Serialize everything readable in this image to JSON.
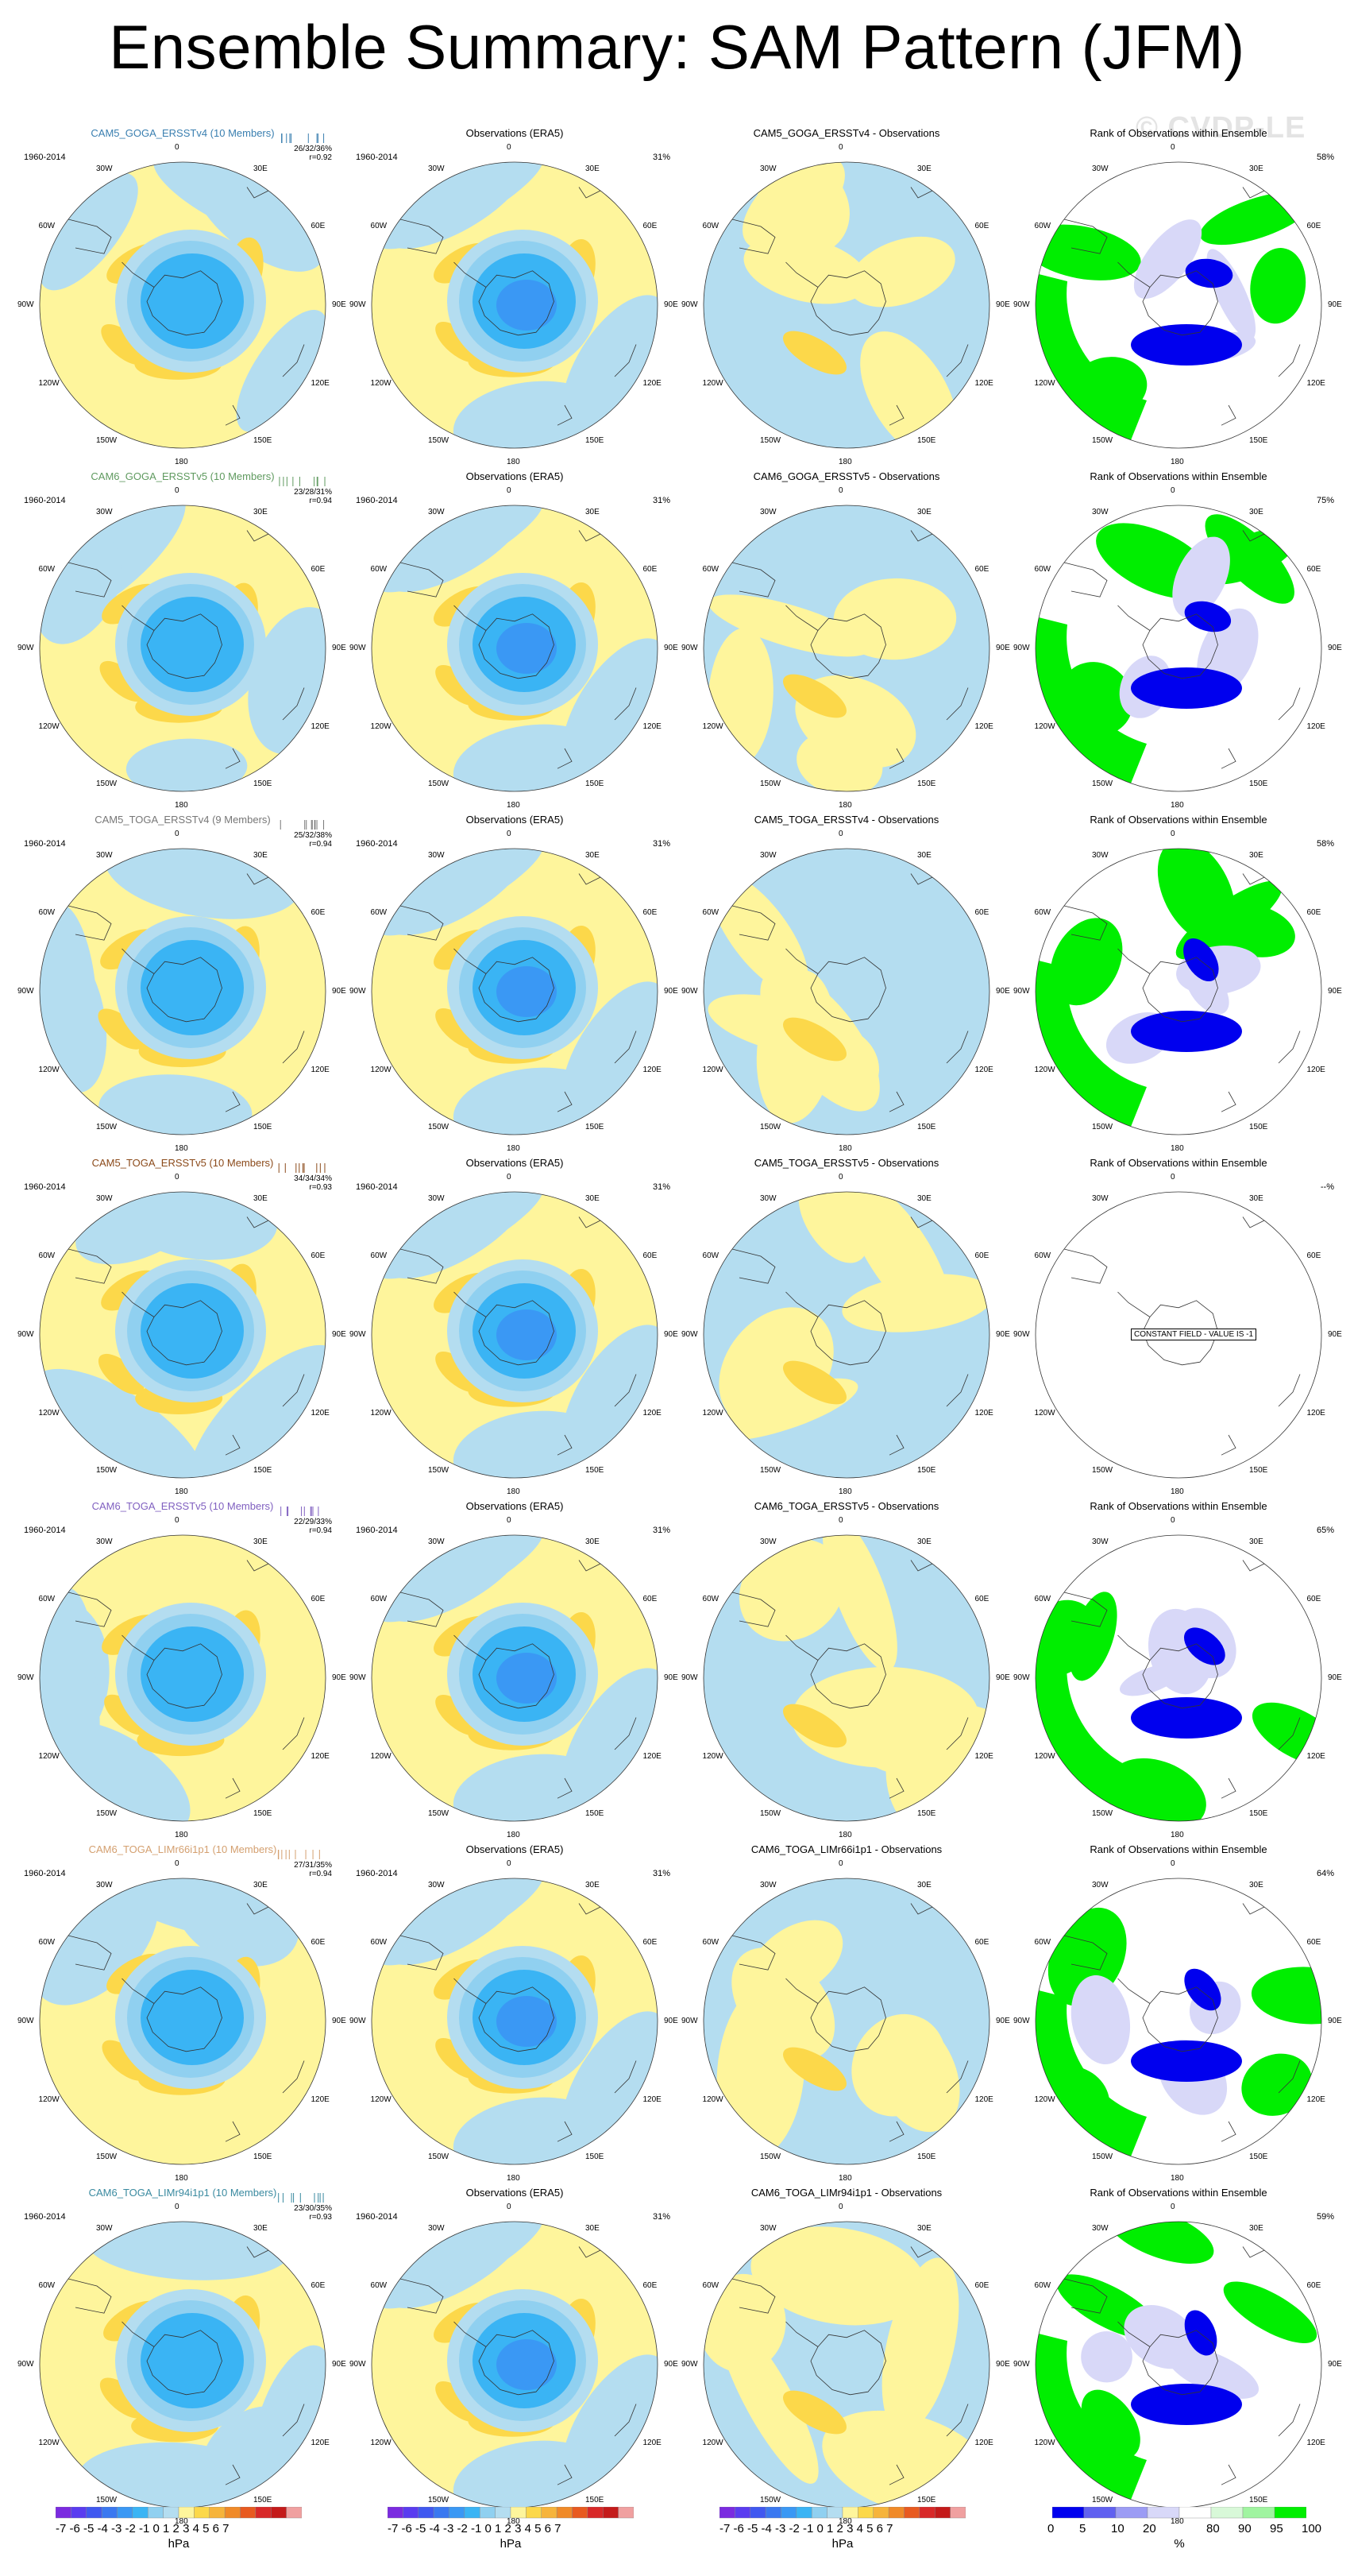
{
  "title": "Ensemble Summary: SAM Pattern (JFM)",
  "watermark": "© CVDP-LE",
  "period": "1960-2014",
  "obs_title": "Observations (ERA5)",
  "rank_title": "Rank of Observations within Ensemble",
  "obs_pct": "31%",
  "lon_labels": [
    "0",
    "30E",
    "60E",
    "90E",
    "120E",
    "150E",
    "180",
    "150W",
    "120W",
    "90W",
    "60W",
    "30W"
  ],
  "constant_field": "CONSTANT FIELD - VALUE IS -1",
  "rows": [
    {
      "ens_title": "CAM5_GOGA_ERSSTv4 (10 Members)",
      "color": "#3a7fb0",
      "stats": "26/32/36%",
      "r": "r=0.92",
      "diff_title": "CAM5_GOGA_ERSSTv4 - Observations",
      "rank_pct": "58%",
      "seed": 11
    },
    {
      "ens_title": "CAM6_GOGA_ERSSTv5 (10 Members)",
      "color": "#5f9a5f",
      "stats": "23/28/31%",
      "r": "r=0.94",
      "diff_title": "CAM6_GOGA_ERSSTv5 - Observations",
      "rank_pct": "75%",
      "seed": 23
    },
    {
      "ens_title": "CAM5_TOGA_ERSSTv4 (9 Members)",
      "color": "#777777",
      "stats": "25/32/38%",
      "r": "r=0.94",
      "diff_title": "CAM5_TOGA_ERSSTv4 - Observations",
      "rank_pct": "58%",
      "seed": 37
    },
    {
      "ens_title": "CAM5_TOGA_ERSSTv5 (10 Members)",
      "color": "#8b4a1a",
      "stats": "34/34/34%",
      "r": "r=0.93",
      "diff_title": "CAM5_TOGA_ERSSTv5 - Observations",
      "rank_pct": "--%",
      "seed": 0,
      "constant": true
    },
    {
      "ens_title": "CAM6_TOGA_ERSSTv5 (10 Members)",
      "color": "#8060c0",
      "stats": "22/29/33%",
      "r": "r=0.94",
      "diff_title": "CAM6_TOGA_ERSSTv5 - Observations",
      "rank_pct": "65%",
      "seed": 53
    },
    {
      "ens_title": "CAM6_TOGA_LIMr66i1p1 (10 Members)",
      "color": "#d4a070",
      "stats": "27/31/35%",
      "r": "r=0.94",
      "diff_title": "CAM6_TOGA_LIMr66i1p1 - Observations",
      "rank_pct": "64%",
      "seed": 71
    },
    {
      "ens_title": "CAM6_TOGA_LIMr94i1p1 (10 Members)",
      "color": "#3a8aa0",
      "stats": "23/30/35%",
      "r": "r=0.93",
      "diff_title": "CAM6_TOGA_LIMr94i1p1 - Observations",
      "rank_pct": "59%",
      "seed": 89
    }
  ],
  "colorbar_hpa": {
    "labels": "-7 -6 -5 -4 -3 -2 -1 0  1  2  3  4  5  6  7",
    "unit": "hPa",
    "colors": [
      "#7b2be0",
      "#5a3cf0",
      "#4058f0",
      "#3a78f0",
      "#3a98f4",
      "#3ab4f4",
      "#90d0f0",
      "#b4ddf0",
      "#fef59c",
      "#fcd84a",
      "#f6b43c",
      "#f08a28",
      "#e85a20",
      "#d82828",
      "#c41a1a",
      "#f0a0a0"
    ]
  },
  "colorbar_rank": {
    "labels": [
      "0",
      "5",
      "10",
      "20",
      "80",
      "90",
      "95",
      "100"
    ],
    "unit": "%",
    "colors": [
      "#0000ee",
      "#6060f0",
      "#9c9cf4",
      "#d8d8f8",
      "#ffffff",
      "#d8f8d8",
      "#a0f4a0",
      "#00ee00"
    ]
  }
}
